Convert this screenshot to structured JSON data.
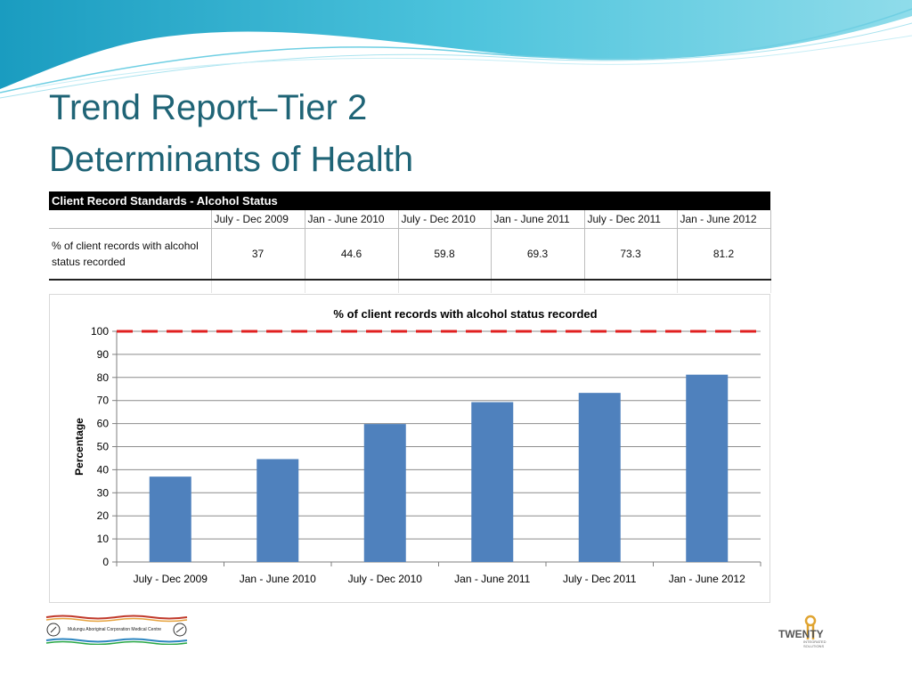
{
  "slide": {
    "title_line1": "Trend Report–Tier 2",
    "title_line2": "Determinants of Health"
  },
  "table": {
    "header": "Client Record Standards - Alcohol Status",
    "periods": [
      "July - Dec 2009",
      "Jan - June 2010",
      "July - Dec 2010",
      "Jan - June 2011",
      "July - Dec 2011",
      "Jan - June 2012"
    ],
    "row_label": "% of client records with alcohol status recorded",
    "values": [
      "37",
      "44.6",
      "59.8",
      "69.3",
      "73.3",
      "81.2"
    ]
  },
  "chart_data": {
    "type": "bar",
    "title": "% of client records with alcohol status recorded",
    "xlabel": "",
    "ylabel": "Percentage",
    "categories": [
      "July - Dec 2009",
      "Jan - June 2010",
      "July - Dec 2010",
      "Jan - June 2011",
      "July - Dec 2011",
      "Jan - June 2012"
    ],
    "values": [
      37,
      44.6,
      59.8,
      69.3,
      73.3,
      81.2
    ],
    "ylim": [
      0,
      100
    ],
    "yticks": [
      0,
      10,
      20,
      30,
      40,
      50,
      60,
      70,
      80,
      90,
      100
    ],
    "target_line": 100,
    "grid": true,
    "legend": "none",
    "colors": {
      "bar": "#4f81bd",
      "target": "#e02020",
      "grid": "#8c8c8c"
    }
  },
  "logos": {
    "left_text": "Mulungu Aboriginal Corporation Medical Centre",
    "right_word": "TWENTY",
    "right_sub": "INTEGRATED SOLUTIONS"
  },
  "theme": {
    "title_color": "#1f6476",
    "wave_color": "#3fb6d3"
  }
}
